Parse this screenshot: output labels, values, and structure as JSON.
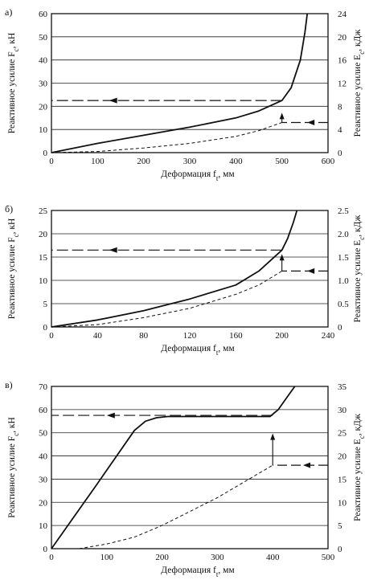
{
  "chart_data": [
    {
      "type": "line",
      "panel_label": "а)",
      "xlabel": "Деформация f",
      "xlabel_sub": "t",
      "xlabel_unit": ", мм",
      "ylabel": "Реактивное усилие F",
      "ylabel_sub": "c",
      "ylabel_unit": ", кН",
      "y2label": "Реактивное усилие E",
      "y2label_sub": "c",
      "y2label_unit": ", кДж",
      "xlim": [
        0,
        600
      ],
      "ylim": [
        0,
        60
      ],
      "y2lim": [
        0,
        24
      ],
      "xticks": [
        0,
        100,
        200,
        300,
        400,
        500,
        600
      ],
      "yticks": [
        0,
        10,
        20,
        30,
        40,
        50,
        60
      ],
      "y2ticks": [
        0,
        4,
        8,
        12,
        16,
        20,
        24
      ],
      "grid": true,
      "series": [
        {
          "style": "solid",
          "axis": "left",
          "x": [
            0,
            100,
            200,
            300,
            400,
            450,
            500,
            520,
            540,
            550,
            555
          ],
          "y": [
            0,
            4,
            7.5,
            11,
            15,
            18,
            22.5,
            28,
            40,
            52,
            60
          ]
        },
        {
          "style": "dashed",
          "axis": "left",
          "x": [
            0,
            100,
            200,
            300,
            400,
            450,
            500
          ],
          "y": [
            0,
            0.5,
            2,
            4,
            7,
            9.5,
            13
          ]
        }
      ],
      "annotations": [
        {
          "type": "leader-left",
          "from_x": 500,
          "y": 22.5,
          "axis": "left"
        },
        {
          "type": "up-arrow-right",
          "x": 500,
          "y_from": 13,
          "y_to": 16.5,
          "axis": "left"
        }
      ]
    },
    {
      "type": "line",
      "panel_label": "б)",
      "xlabel": "Деформация f",
      "xlabel_sub": "t",
      "xlabel_unit": ", мм",
      "ylabel": "Реактивное усилие F",
      "ylabel_sub": "c",
      "ylabel_unit": ", кН",
      "y2label": "Реактивное усилие E",
      "y2label_sub": "c",
      "y2label_unit": ", кДж",
      "xlim": [
        0,
        240
      ],
      "ylim": [
        0,
        25
      ],
      "y2lim": [
        0,
        2.5
      ],
      "xticks": [
        0,
        40,
        80,
        120,
        160,
        200,
        240
      ],
      "yticks": [
        0,
        5,
        10,
        15,
        20,
        25
      ],
      "y2ticks": [
        0,
        0.5,
        1.0,
        1.5,
        2.0,
        2.5
      ],
      "y2ticklabels": [
        "0",
        "0.5",
        "1.0",
        "1.5",
        "2.0",
        "2.5"
      ],
      "grid": true,
      "series": [
        {
          "style": "solid",
          "axis": "left",
          "x": [
            0,
            40,
            80,
            120,
            160,
            180,
            200,
            205,
            210,
            213
          ],
          "y": [
            0,
            1.5,
            3.5,
            6,
            9,
            12,
            16.5,
            19,
            22.5,
            25
          ]
        },
        {
          "style": "dashed",
          "axis": "left",
          "x": [
            0,
            40,
            80,
            120,
            160,
            180,
            200
          ],
          "y": [
            0,
            0.5,
            2,
            4,
            7,
            9,
            12
          ]
        }
      ],
      "annotations": [
        {
          "type": "leader-left",
          "from_x": 200,
          "y": 16.5,
          "axis": "left"
        },
        {
          "type": "up-arrow-right",
          "x": 200,
          "y_from": 12,
          "y_to": 15.3,
          "axis": "left"
        }
      ]
    },
    {
      "type": "line",
      "panel_label": "в)",
      "xlabel": "Деформация f",
      "xlabel_sub": "t",
      "xlabel_unit": ", мм",
      "ylabel": "Реактивное усилие F",
      "ylabel_sub": "c",
      "ylabel_unit": ", кН",
      "y2label": "Реактивное усилие E",
      "y2label_sub": "c",
      "y2label_unit": ", кДж",
      "xlim": [
        0,
        500
      ],
      "ylim": [
        0,
        70
      ],
      "y2lim": [
        0,
        35
      ],
      "xticks": [
        0,
        100,
        200,
        300,
        400,
        500
      ],
      "yticks": [
        0,
        10,
        20,
        30,
        40,
        50,
        60,
        70
      ],
      "y2ticks": [
        0,
        5,
        10,
        15,
        20,
        25,
        30,
        35
      ],
      "grid": true,
      "series": [
        {
          "style": "solid",
          "axis": "left",
          "x": [
            0,
            80,
            150,
            170,
            190,
            210,
            300,
            395,
            410,
            425,
            440
          ],
          "y": [
            0,
            27,
            51,
            55,
            56.5,
            57,
            57,
            57,
            60,
            65,
            70
          ]
        },
        {
          "style": "dashed",
          "axis": "left",
          "x": [
            50,
            100,
            150,
            200,
            250,
            300,
            350,
            400
          ],
          "y": [
            0,
            2,
            5,
            10,
            16,
            22,
            29,
            36
          ]
        }
      ],
      "annotations": [
        {
          "type": "leader-left",
          "from_x": 400,
          "y": 57.5,
          "axis": "left"
        },
        {
          "type": "up-arrow-right",
          "x": 400,
          "y_from": 36,
          "y_to": 49,
          "axis": "left"
        }
      ]
    }
  ]
}
